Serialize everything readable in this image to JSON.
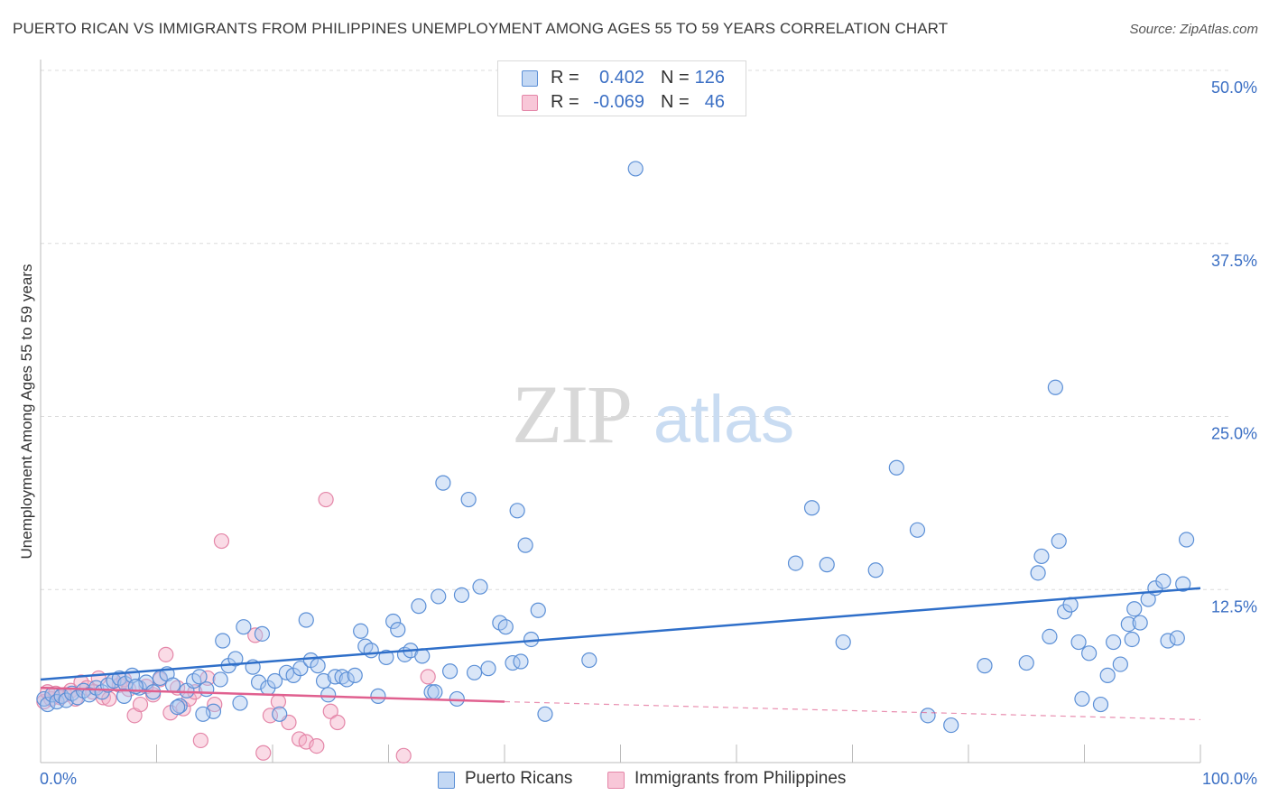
{
  "title": "PUERTO RICAN VS IMMIGRANTS FROM PHILIPPINES UNEMPLOYMENT AMONG AGES 55 TO 59 YEARS CORRELATION CHART",
  "source": "Source: ZipAtlas.com",
  "watermark": {
    "zip": "ZIP",
    "atlas": "atlas"
  },
  "legend_top": [
    {
      "r_label": "R =",
      "r_value": "0.402",
      "n_label": "N =",
      "n_value": "126"
    },
    {
      "r_label": "R =",
      "r_value": "-0.069",
      "n_label": "N =",
      "n_value": "46"
    }
  ],
  "legend_bottom": [
    {
      "label": "Puerto Ricans"
    },
    {
      "label": "Immigrants from Philippines"
    }
  ],
  "colors": {
    "blue_fill": "rgba(170,200,240,0.45)",
    "blue_stroke": "#5b8fd6",
    "blue_line": "#2f6fc9",
    "pink_fill": "rgba(245,175,200,0.45)",
    "pink_stroke": "#e486a8",
    "pink_line": "#e0608f",
    "tick_text": "#3b6fc4"
  },
  "chart_data": {
    "type": "scatter",
    "title": "PUERTO RICAN VS IMMIGRANTS FROM PHILIPPINES UNEMPLOYMENT AMONG AGES 55 TO 59 YEARS CORRELATION CHART",
    "xlabel": "",
    "ylabel": "Unemployment Among Ages 55 to 59 years",
    "xlim": [
      0,
      100
    ],
    "ylim": [
      0,
      50
    ],
    "x_tick_labels": [
      "0.0%",
      "100.0%"
    ],
    "y_ticks": [
      12.5,
      25.0,
      37.5,
      50.0
    ],
    "y_tick_labels": [
      "12.5%",
      "25.0%",
      "37.5%",
      "50.0%"
    ],
    "grid": true,
    "series": [
      {
        "name": "Puerto Ricans",
        "points": [
          [
            0.3,
            4.6
          ],
          [
            0.6,
            4.2
          ],
          [
            1.0,
            4.9
          ],
          [
            1.4,
            4.4
          ],
          [
            1.8,
            4.8
          ],
          [
            2.2,
            4.5
          ],
          [
            2.7,
            5.0
          ],
          [
            3.2,
            4.7
          ],
          [
            3.7,
            5.2
          ],
          [
            4.2,
            4.9
          ],
          [
            4.8,
            5.4
          ],
          [
            5.3,
            5.1
          ],
          [
            5.8,
            5.6
          ],
          [
            6.3,
            5.9
          ],
          [
            6.8,
            6.1
          ],
          [
            7.3,
            5.7
          ],
          [
            7.9,
            6.3
          ],
          [
            8.5,
            5.4
          ],
          [
            9.1,
            5.8
          ],
          [
            9.7,
            5.1
          ],
          [
            10.3,
            6.1
          ],
          [
            10.9,
            6.4
          ],
          [
            11.4,
            5.6
          ],
          [
            12.0,
            4.1
          ],
          [
            12.6,
            5.2
          ],
          [
            13.2,
            5.9
          ],
          [
            13.7,
            6.2
          ],
          [
            14.3,
            5.3
          ],
          [
            14.9,
            3.7
          ],
          [
            15.5,
            6.0
          ],
          [
            15.7,
            8.8
          ],
          [
            16.2,
            7.0
          ],
          [
            16.8,
            7.5
          ],
          [
            17.2,
            4.3
          ],
          [
            17.5,
            9.8
          ],
          [
            18.3,
            6.9
          ],
          [
            18.8,
            5.8
          ],
          [
            19.1,
            9.3
          ],
          [
            19.6,
            5.4
          ],
          [
            20.2,
            5.9
          ],
          [
            20.6,
            3.5
          ],
          [
            21.2,
            6.5
          ],
          [
            21.8,
            6.3
          ],
          [
            22.4,
            6.8
          ],
          [
            22.9,
            10.3
          ],
          [
            23.3,
            7.4
          ],
          [
            23.9,
            7.0
          ],
          [
            24.4,
            5.9
          ],
          [
            24.8,
            4.9
          ],
          [
            25.4,
            6.2
          ],
          [
            26.0,
            6.2
          ],
          [
            26.4,
            6.0
          ],
          [
            27.1,
            6.3
          ],
          [
            27.6,
            9.5
          ],
          [
            28.0,
            8.4
          ],
          [
            28.5,
            8.1
          ],
          [
            29.1,
            4.8
          ],
          [
            29.8,
            7.6
          ],
          [
            30.4,
            10.2
          ],
          [
            30.8,
            9.6
          ],
          [
            31.4,
            7.8
          ],
          [
            31.9,
            8.1
          ],
          [
            32.6,
            11.3
          ],
          [
            32.9,
            7.7
          ],
          [
            33.7,
            5.1
          ],
          [
            34.3,
            12.0
          ],
          [
            34.7,
            20.2
          ],
          [
            35.3,
            6.6
          ],
          [
            35.9,
            4.6
          ],
          [
            36.3,
            12.1
          ],
          [
            36.9,
            19.0
          ],
          [
            37.4,
            6.5
          ],
          [
            37.9,
            12.7
          ],
          [
            38.6,
            6.8
          ],
          [
            39.6,
            10.1
          ],
          [
            40.1,
            9.8
          ],
          [
            40.7,
            7.2
          ],
          [
            41.1,
            18.2
          ],
          [
            41.4,
            7.3
          ],
          [
            41.8,
            15.7
          ],
          [
            42.3,
            8.9
          ],
          [
            42.9,
            11.0
          ],
          [
            43.5,
            3.5
          ],
          [
            47.3,
            7.4
          ],
          [
            51.3,
            42.9
          ],
          [
            65.1,
            14.4
          ],
          [
            66.5,
            18.4
          ],
          [
            67.8,
            14.3
          ],
          [
            69.2,
            8.7
          ],
          [
            72.0,
            13.9
          ],
          [
            73.8,
            21.3
          ],
          [
            75.6,
            16.8
          ],
          [
            76.5,
            3.4
          ],
          [
            78.5,
            2.7
          ],
          [
            81.4,
            7.0
          ],
          [
            85.0,
            7.2
          ],
          [
            86.0,
            13.7
          ],
          [
            86.3,
            14.9
          ],
          [
            87.0,
            9.1
          ],
          [
            87.8,
            16.0
          ],
          [
            87.5,
            27.1
          ],
          [
            88.3,
            10.9
          ],
          [
            88.8,
            11.4
          ],
          [
            89.5,
            8.7
          ],
          [
            89.8,
            4.6
          ],
          [
            90.4,
            7.9
          ],
          [
            91.4,
            4.2
          ],
          [
            92.0,
            6.3
          ],
          [
            92.5,
            8.7
          ],
          [
            93.1,
            7.1
          ],
          [
            93.8,
            10.0
          ],
          [
            94.3,
            11.1
          ],
          [
            94.8,
            10.1
          ],
          [
            95.5,
            11.8
          ],
          [
            96.1,
            12.6
          ],
          [
            96.8,
            13.1
          ],
          [
            97.2,
            8.8
          ],
          [
            98.0,
            9.0
          ],
          [
            98.5,
            12.9
          ],
          [
            98.8,
            16.1
          ],
          [
            7.2,
            4.8
          ],
          [
            8.2,
            5.5
          ],
          [
            11.8,
            4.0
          ],
          [
            34.0,
            5.1
          ],
          [
            94.1,
            8.9
          ],
          [
            14.0,
            3.5
          ]
        ]
      },
      {
        "name": "Immigrants from Philippines",
        "points": [
          [
            0.3,
            4.4
          ],
          [
            0.6,
            5.1
          ],
          [
            0.9,
            4.6
          ],
          [
            1.3,
            5.0
          ],
          [
            1.7,
            4.7
          ],
          [
            2.1,
            4.9
          ],
          [
            2.6,
            5.2
          ],
          [
            3.0,
            4.6
          ],
          [
            3.5,
            5.8
          ],
          [
            4.0,
            5.4
          ],
          [
            4.5,
            5.1
          ],
          [
            5.0,
            6.1
          ],
          [
            5.4,
            4.7
          ],
          [
            5.9,
            4.6
          ],
          [
            6.3,
            5.9
          ],
          [
            6.8,
            5.6
          ],
          [
            7.2,
            6.0
          ],
          [
            7.6,
            5.3
          ],
          [
            8.1,
            3.4
          ],
          [
            8.6,
            4.2
          ],
          [
            9.1,
            5.5
          ],
          [
            9.7,
            4.9
          ],
          [
            10.3,
            6.0
          ],
          [
            10.8,
            7.8
          ],
          [
            11.2,
            3.6
          ],
          [
            11.8,
            5.4
          ],
          [
            12.3,
            3.9
          ],
          [
            12.8,
            4.6
          ],
          [
            13.3,
            5.1
          ],
          [
            13.8,
            1.6
          ],
          [
            14.4,
            6.1
          ],
          [
            15.6,
            16.0
          ],
          [
            15.0,
            4.2
          ],
          [
            18.5,
            9.2
          ],
          [
            19.2,
            0.7
          ],
          [
            19.8,
            3.4
          ],
          [
            20.5,
            4.4
          ],
          [
            21.4,
            2.9
          ],
          [
            22.3,
            1.7
          ],
          [
            22.9,
            1.5
          ],
          [
            23.8,
            1.2
          ],
          [
            24.6,
            19.0
          ],
          [
            25.0,
            3.7
          ],
          [
            25.6,
            2.9
          ],
          [
            31.3,
            0.5
          ],
          [
            33.4,
            6.2
          ]
        ]
      }
    ],
    "trend_lines": [
      {
        "series": "Puerto Ricans",
        "x0": 0,
        "y0": 6.0,
        "x1": 100,
        "y1": 12.6
      },
      {
        "series": "Immigrants from Philippines",
        "x0": 0,
        "y0": 5.4,
        "x1": 40,
        "y1": 4.4,
        "dashed_to_x": 100,
        "dashed_to_y": 3.1
      }
    ]
  }
}
